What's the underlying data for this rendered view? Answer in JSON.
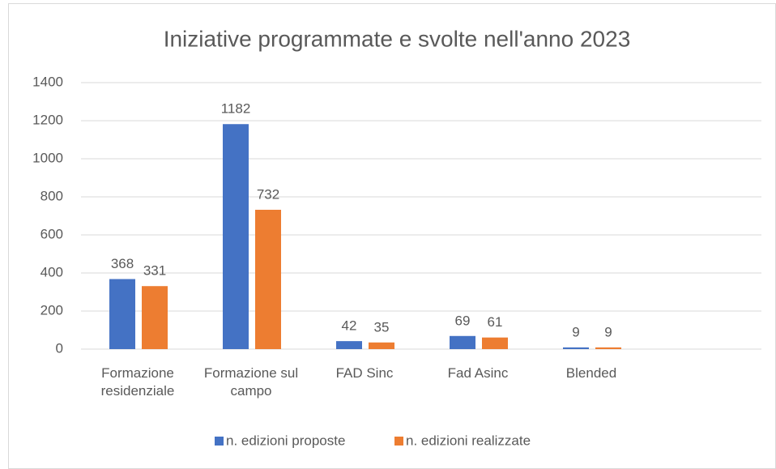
{
  "chart_data": {
    "type": "bar",
    "title": "Iniziative programmate e svolte nell'anno 2023",
    "categories": [
      "Formazione residenziale",
      "Formazione sul campo",
      "FAD Sinc",
      "Fad Asinc",
      "Blended",
      null
    ],
    "series": [
      {
        "name": "n. edizioni proposte",
        "color": "#4472c4",
        "values": [
          368,
          1182,
          42,
          69,
          9,
          null
        ]
      },
      {
        "name": "n. edizioni realizzate",
        "color": "#ed7d31",
        "values": [
          331,
          732,
          35,
          61,
          9,
          null
        ]
      }
    ],
    "ylim": [
      0,
      1400
    ],
    "yticks": [
      0,
      200,
      400,
      600,
      800,
      1000,
      1200,
      1400
    ],
    "grid": true,
    "legend": "bottom"
  }
}
